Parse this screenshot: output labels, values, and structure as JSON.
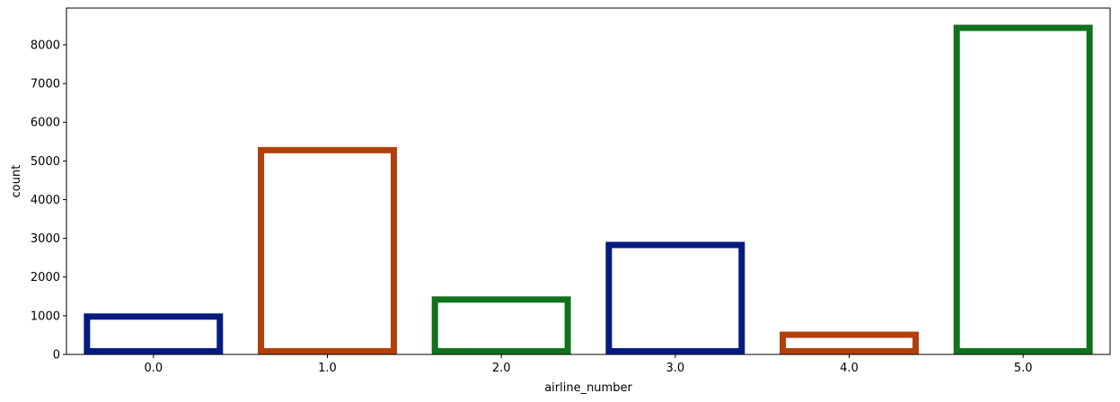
{
  "chart_data": {
    "type": "bar",
    "categories": [
      "0.0",
      "1.0",
      "2.0",
      "3.0",
      "4.0",
      "5.0"
    ],
    "values": [
      1060,
      5360,
      1500,
      2910,
      590,
      8520
    ],
    "xlabel": "airline_number",
    "ylabel": "count",
    "ylim": [
      0,
      8950
    ],
    "yticks": [
      0,
      1000,
      2000,
      3000,
      4000,
      5000,
      6000,
      7000,
      8000
    ],
    "bar_style": "outline",
    "colors": [
      "#001c7f",
      "#b1400d",
      "#12711c",
      "#001c7f",
      "#b1400d",
      "#12711c"
    ],
    "grid": false,
    "legend": "none"
  }
}
